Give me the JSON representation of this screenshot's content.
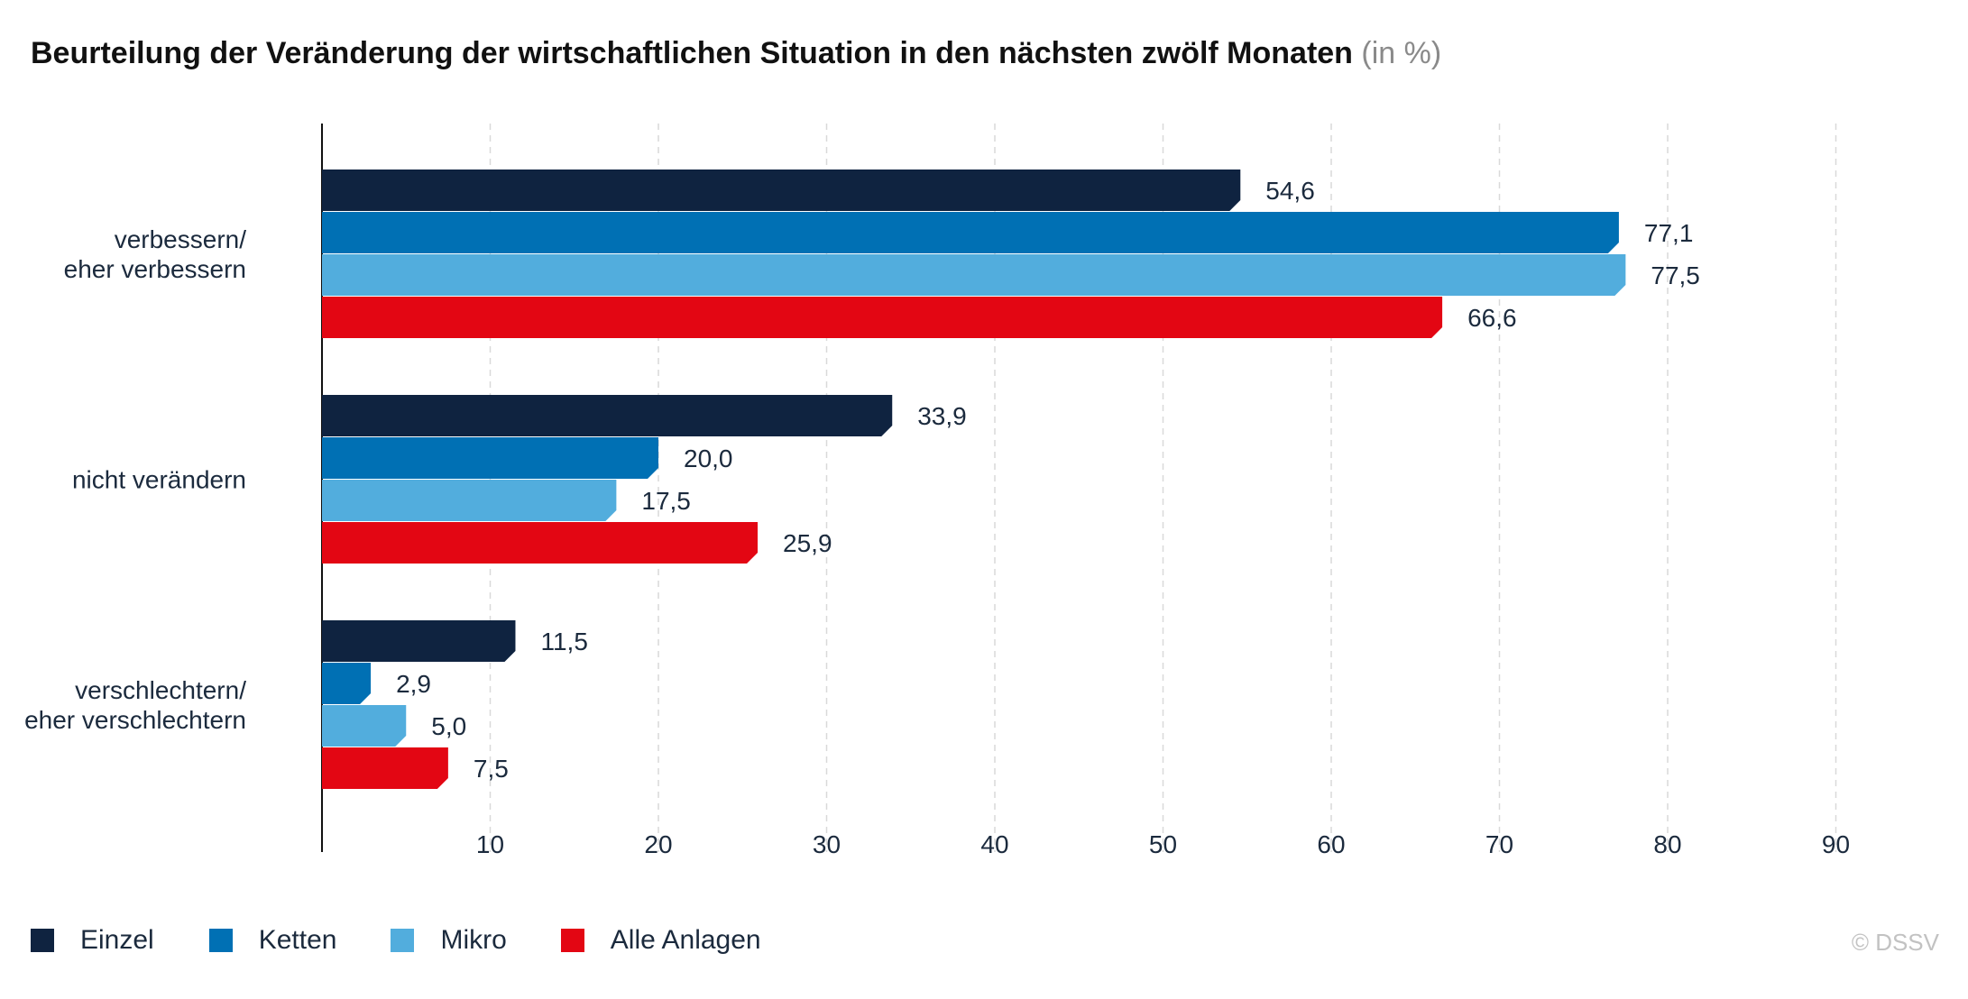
{
  "title": "Beurteilung der Veränderung der wirtschaftlichen Situation in den nächsten zwölf Monaten",
  "title_unit": "(in %)",
  "copyright": "© DSSV",
  "chart_data": {
    "type": "bar",
    "orientation": "horizontal",
    "categories": [
      "verbessern/\neher verbessern",
      "nicht verändern",
      "verschlechtern/\neher verschlechtern"
    ],
    "series": [
      {
        "name": "Einzel",
        "color": "#0f2340",
        "values": [
          54.6,
          33.9,
          11.5
        ],
        "labels": [
          "54,6",
          "33,9",
          "11,5"
        ]
      },
      {
        "name": "Ketten",
        "color": "#0070b4",
        "values": [
          77.1,
          20.0,
          2.9
        ],
        "labels": [
          "77,1",
          "20,0",
          "2,9"
        ]
      },
      {
        "name": "Mikro",
        "color": "#52addd",
        "values": [
          77.5,
          17.5,
          5.0
        ],
        "labels": [
          "77,5",
          "17,5",
          "5,0"
        ]
      },
      {
        "name": "Alle Anlagen",
        "color": "#e30613",
        "values": [
          66.6,
          25.9,
          7.5
        ],
        "labels": [
          "66,6",
          "25,9",
          "7,5"
        ]
      }
    ],
    "xlim": [
      0,
      95
    ],
    "xticks": [
      10,
      20,
      30,
      40,
      50,
      60,
      70,
      80,
      90
    ],
    "grid": true,
    "grid_style": "dashed vertical",
    "legend_position": "bottom-left",
    "xlabel": "",
    "ylabel": ""
  }
}
